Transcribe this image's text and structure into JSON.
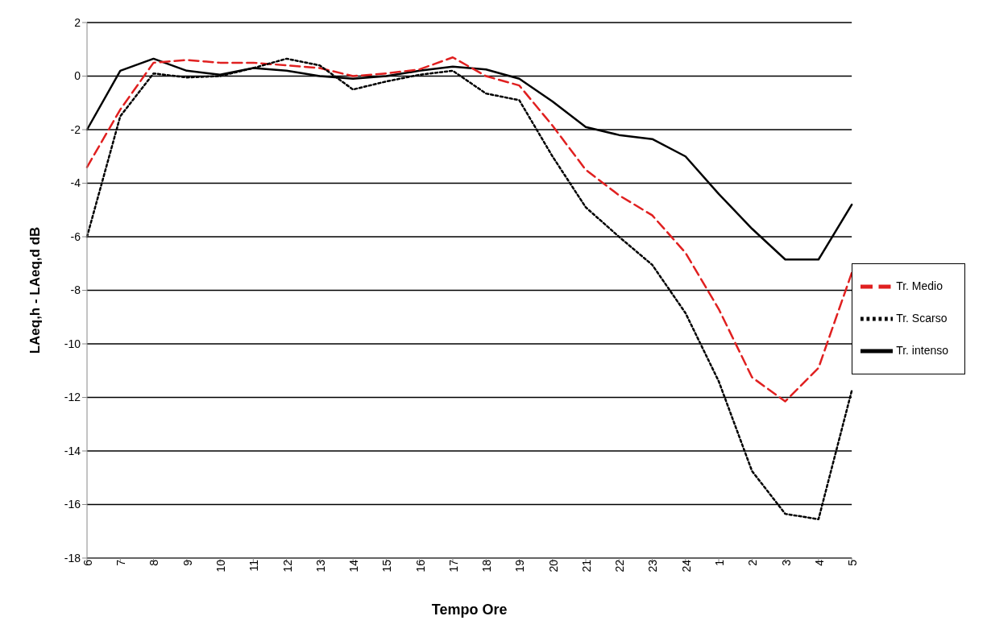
{
  "chart_data": {
    "type": "line",
    "xlabel": "Tempo Ore",
    "ylabel": "LAeq,h - LAeq,d  dB",
    "categories": [
      "6",
      "7",
      "8",
      "9",
      "10",
      "11",
      "12",
      "13",
      "14",
      "15",
      "16",
      "17",
      "18",
      "19",
      "20",
      "21",
      "22",
      "23",
      "24",
      "1",
      "2",
      "3",
      "4",
      "5"
    ],
    "series": [
      {
        "name": "Tr. intenso",
        "color": "#000000",
        "line_style": "solid",
        "values": [
          -2.0,
          0.2,
          0.65,
          0.2,
          0.05,
          0.3,
          0.2,
          0.0,
          -0.1,
          0.0,
          0.2,
          0.35,
          0.25,
          -0.1,
          -0.95,
          -1.9,
          -2.2,
          -2.35,
          -3.0,
          -4.4,
          -5.7,
          -6.85,
          -6.85,
          -4.8
        ]
      },
      {
        "name": "Tr. Medio",
        "color": "#e02020",
        "line_style": "dashed",
        "values": [
          -3.4,
          -1.25,
          0.5,
          0.6,
          0.5,
          0.5,
          0.4,
          0.3,
          0.0,
          0.1,
          0.25,
          0.7,
          0.0,
          -0.35,
          -1.85,
          -3.5,
          -4.45,
          -5.2,
          -6.6,
          -8.7,
          -11.25,
          -12.15,
          -10.9,
          -7.35
        ]
      },
      {
        "name": "Tr. Scarso",
        "color": "#000000",
        "line_style": "dotted",
        "values": [
          -6.0,
          -1.5,
          0.1,
          -0.05,
          0.0,
          0.3,
          0.65,
          0.4,
          -0.5,
          -0.2,
          0.05,
          0.2,
          -0.65,
          -0.9,
          -3.0,
          -4.9,
          -6.0,
          -7.05,
          -8.85,
          -11.4,
          -14.75,
          -16.35,
          -16.55,
          -11.75
        ]
      }
    ],
    "ylim": [
      -18,
      2
    ],
    "yticks": [
      -18,
      -16,
      -14,
      -12,
      -10,
      -8,
      -6,
      -4,
      -2,
      0,
      2
    ],
    "grid": "y",
    "legend": "right",
    "marker": "none"
  }
}
